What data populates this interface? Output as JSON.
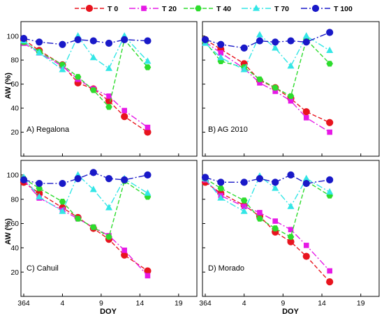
{
  "legend": [
    {
      "name": "T 0",
      "color": "#e8141e",
      "marker": "circle",
      "dash": "6,3"
    },
    {
      "name": "T 20",
      "color": "#e619e6",
      "marker": "square",
      "dash": "9,3,2,3"
    },
    {
      "name": "T 40",
      "color": "#2ddc2d",
      "marker": "hexagon",
      "dash": "6,3"
    },
    {
      "name": "T 70",
      "color": "#33e6e6",
      "marker": "triangle",
      "dash": "9,3,2,3"
    },
    {
      "name": "T 100",
      "color": "#1919c8",
      "marker": "circle",
      "dash": "9,3,2,3"
    }
  ],
  "axes": {
    "ylabel": "AW (%)",
    "xlabel": "DOY",
    "x_tick_labels": [
      "364",
      "4",
      "9",
      "14",
      "19"
    ],
    "y_tick_labels": [
      "20",
      "40",
      "60",
      "80",
      "100"
    ]
  },
  "chart_data": [
    {
      "type": "line",
      "panel": "A) Regalona",
      "x": [
        364,
        1,
        4,
        6,
        8,
        10,
        12,
        15
      ],
      "xlabel": "",
      "ylabel": "AW (%)",
      "xlim": [
        364,
        21
      ],
      "ylim": [
        0,
        112
      ],
      "series": [
        {
          "name": "T 0",
          "values": [
            97,
            88,
            76,
            61,
            56,
            46,
            33,
            20
          ]
        },
        {
          "name": "T 20",
          "values": [
            94,
            86,
            75,
            64,
            56,
            50,
            38,
            24
          ]
        },
        {
          "name": "T 40",
          "values": [
            95,
            87,
            76,
            66,
            55,
            41,
            97,
            74
          ]
        },
        {
          "name": "T 70",
          "values": [
            96,
            86,
            72,
            100,
            82,
            73,
            100,
            79
          ]
        },
        {
          "name": "T 100",
          "values": [
            98,
            95,
            93,
            97,
            96,
            94,
            97,
            96
          ]
        }
      ]
    },
    {
      "type": "line",
      "panel": "B) AG 2010",
      "x": [
        364,
        1,
        4,
        6,
        8,
        10,
        12,
        15
      ],
      "xlabel": "",
      "ylabel": "",
      "xlim": [
        364,
        21
      ],
      "ylim": [
        0,
        112
      ],
      "series": [
        {
          "name": "T 0",
          "values": [
            97,
            89,
            77,
            63,
            57,
            48,
            37,
            28
          ]
        },
        {
          "name": "T 20",
          "values": [
            95,
            86,
            73,
            61,
            54,
            46,
            32,
            20
          ]
        },
        {
          "name": "T 40",
          "values": [
            95,
            79,
            74,
            64,
            57,
            50,
            97,
            77
          ]
        },
        {
          "name": "T 70",
          "values": [
            94,
            82,
            72,
            101,
            90,
            75,
            100,
            88
          ]
        },
        {
          "name": "T 100",
          "values": [
            97,
            93,
            90,
            96,
            95,
            96,
            95,
            103
          ]
        }
      ]
    },
    {
      "type": "line",
      "panel": "C) Cahuil",
      "x": [
        364,
        1,
        4,
        6,
        8,
        10,
        12,
        15
      ],
      "xlabel": "DOY",
      "ylabel": "AW (%)",
      "xlim": [
        364,
        21
      ],
      "ylim": [
        0,
        112
      ],
      "series": [
        {
          "name": "T 0",
          "values": [
            94,
            85,
            73,
            65,
            56,
            47,
            34,
            21
          ]
        },
        {
          "name": "T 20",
          "values": [
            96,
            81,
            71,
            64,
            57,
            50,
            38,
            17
          ]
        },
        {
          "name": "T 40",
          "values": [
            97,
            89,
            78,
            64,
            57,
            49,
            95,
            82
          ]
        },
        {
          "name": "T 70",
          "values": [
            98,
            82,
            70,
            100,
            88,
            73,
            97,
            85
          ]
        },
        {
          "name": "T 100",
          "values": [
            96,
            93,
            93,
            97,
            102,
            97,
            96,
            100
          ]
        }
      ]
    },
    {
      "type": "line",
      "panel": "D) Morado",
      "x": [
        364,
        1,
        4,
        6,
        8,
        10,
        12,
        15
      ],
      "xlabel": "DOY",
      "ylabel": "",
      "xlim": [
        364,
        21
      ],
      "ylim": [
        0,
        112
      ],
      "series": [
        {
          "name": "T 0",
          "values": [
            94,
            85,
            75,
            66,
            53,
            45,
            33,
            12
          ]
        },
        {
          "name": "T 20",
          "values": [
            96,
            83,
            74,
            69,
            62,
            55,
            42,
            21
          ]
        },
        {
          "name": "T 40",
          "values": [
            97,
            89,
            79,
            64,
            56,
            49,
            95,
            83
          ]
        },
        {
          "name": "T 70",
          "values": [
            97,
            81,
            70,
            99,
            89,
            74,
            97,
            86
          ]
        },
        {
          "name": "T 100",
          "values": [
            98,
            94,
            94,
            97,
            94,
            100,
            93,
            96
          ]
        }
      ]
    }
  ]
}
